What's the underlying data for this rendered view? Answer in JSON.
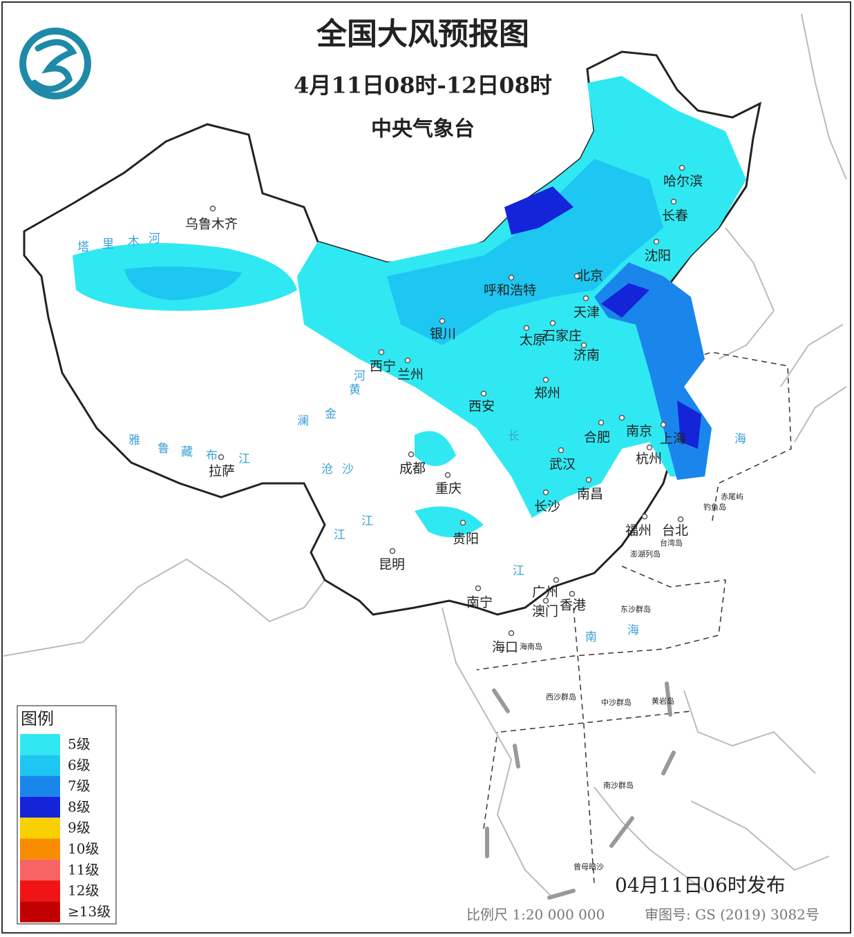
{
  "header": {
    "title": "全国大风预报图",
    "period": "4月11日08时-12日08时",
    "agency": "中央气象台"
  },
  "cities": [
    {
      "name": "乌鲁木齐"
    },
    {
      "name": "拉萨"
    },
    {
      "name": "西宁"
    },
    {
      "name": "兰州"
    },
    {
      "name": "银川"
    },
    {
      "name": "呼和浩特"
    },
    {
      "name": "北京"
    },
    {
      "name": "天津"
    },
    {
      "name": "石家庄"
    },
    {
      "name": "太原"
    },
    {
      "name": "济南"
    },
    {
      "name": "郑州"
    },
    {
      "name": "西安"
    },
    {
      "name": "合肥"
    },
    {
      "name": "南京"
    },
    {
      "name": "上海"
    },
    {
      "name": "杭州"
    },
    {
      "name": "武汉"
    },
    {
      "name": "南昌"
    },
    {
      "name": "长沙"
    },
    {
      "name": "成都"
    },
    {
      "name": "重庆"
    },
    {
      "name": "贵阳"
    },
    {
      "name": "昆明"
    },
    {
      "name": "南宁"
    },
    {
      "name": "广州"
    },
    {
      "name": "香港"
    },
    {
      "name": "澳门"
    },
    {
      "name": "海口"
    },
    {
      "name": "福州"
    },
    {
      "name": "台北"
    },
    {
      "name": "哈尔滨"
    },
    {
      "name": "长春"
    },
    {
      "name": "沈阳"
    }
  ],
  "islands": [
    "海南岛",
    "台湾岛",
    "东沙群岛",
    "西沙群岛",
    "中沙群岛",
    "南沙群岛",
    "黄岩岛",
    "钓鱼岛",
    "赤尾屿",
    "澎湖列岛",
    "曾母暗沙"
  ],
  "waters": [
    "南",
    "海",
    "海",
    "长",
    "江",
    "黄",
    "河",
    "塔",
    "里",
    "木",
    "河",
    "雅",
    "鲁",
    "藏",
    "布",
    "江",
    "金",
    "沙",
    "江",
    "澜",
    "沧",
    "江"
  ],
  "legend": {
    "title": "图例",
    "items": [
      {
        "label": "5级",
        "color": "#30e8f2"
      },
      {
        "label": "6级",
        "color": "#1ec6f2"
      },
      {
        "label": "7级",
        "color": "#1a86ec"
      },
      {
        "label": "8级",
        "color": "#1424d8"
      },
      {
        "label": "9级",
        "color": "#f8d000"
      },
      {
        "label": "10级",
        "color": "#f88c00"
      },
      {
        "label": "11级",
        "color": "#f86464"
      },
      {
        "label": "12级",
        "color": "#f01414"
      },
      {
        "label": "≥13级",
        "color": "#c00000"
      }
    ]
  },
  "footer": {
    "release": "04月11日06时发布",
    "scale": "比例尺 1:20 000 000",
    "approval": "审图号: GS (2019) 3082号"
  }
}
